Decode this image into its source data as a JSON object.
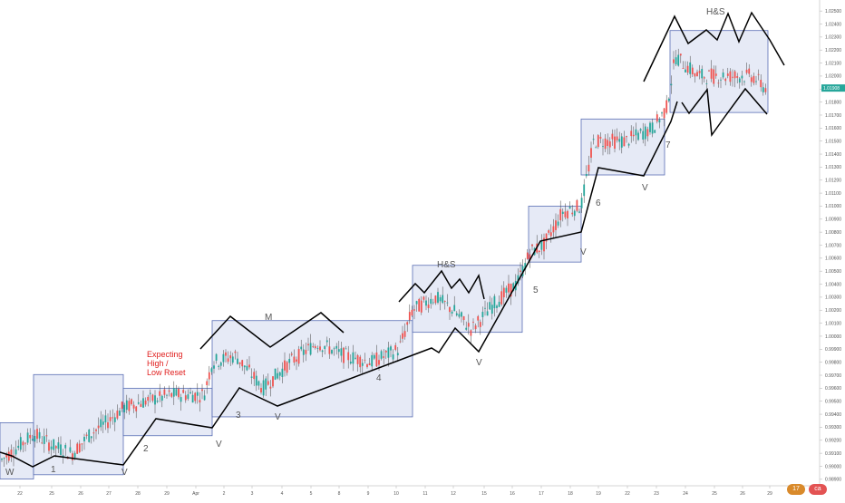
{
  "chart_data": {
    "type": "candlestick",
    "y_ticks": [
      "1.02500",
      "1.02400",
      "1.02300",
      "1.02200",
      "1.02100",
      "1.02000",
      "1.01900",
      "1.01800",
      "1.01700",
      "1.01600",
      "1.01500",
      "1.01400",
      "1.01300",
      "1.01200",
      "1.01100",
      "1.01000",
      "1.00900",
      "1.00800",
      "1.00700",
      "1.00600",
      "1.00500",
      "1.00400",
      "1.00300",
      "1.00200",
      "1.00100",
      "1.00000",
      "0.99900",
      "0.99800",
      "0.99700",
      "0.99600",
      "0.99500",
      "0.99400",
      "0.99300",
      "0.99200",
      "0.99100",
      "0.99000",
      "0.98900"
    ],
    "ylim": [
      0.9885,
      1.0255
    ],
    "x_ticks": [
      "22",
      "25",
      "26",
      "27",
      "28",
      "29",
      "Apr",
      "2",
      "3",
      "4",
      "5",
      "8",
      "9",
      "10",
      "11",
      "12",
      "15",
      "16",
      "17",
      "18",
      "19",
      "22",
      "23",
      "24",
      "25",
      "26",
      "29",
      "30"
    ],
    "last_price": "1.01908",
    "last_price_value": 1.01908,
    "colors": {
      "up": "#26a69a",
      "down": "#ef5350",
      "box_fill": "#dde3f3",
      "box_stroke": "#5a6fb5",
      "price_tag": "#26a69a",
      "line": "#000000"
    },
    "boxes": [
      {
        "y_top": 0.99335,
        "y_bottom": 0.98902
      },
      {
        "y_top": 0.99705,
        "y_bottom": 0.98935
      },
      {
        "y_top": 0.996,
        "y_bottom": 0.99235
      },
      {
        "y_top": 1.0012,
        "y_bottom": 0.9938
      },
      {
        "y_top": 1.00545,
        "y_bottom": 1.0003
      },
      {
        "y_top": 1.01,
        "y_bottom": 1.0057
      },
      {
        "y_top": 1.0167,
        "y_bottom": 1.0124
      },
      {
        "y_top": 1.0235,
        "y_bottom": 1.0172
      }
    ],
    "annotations": [
      "W",
      "1",
      "V",
      "2",
      "V",
      "3",
      "V",
      "M",
      "4",
      "H&S",
      "V",
      "5",
      "V",
      "6",
      "V",
      "7",
      "H&S"
    ],
    "note": [
      "Expecting",
      "High /",
      "Low Reset"
    ],
    "logos": [
      "17",
      "ca"
    ]
  }
}
